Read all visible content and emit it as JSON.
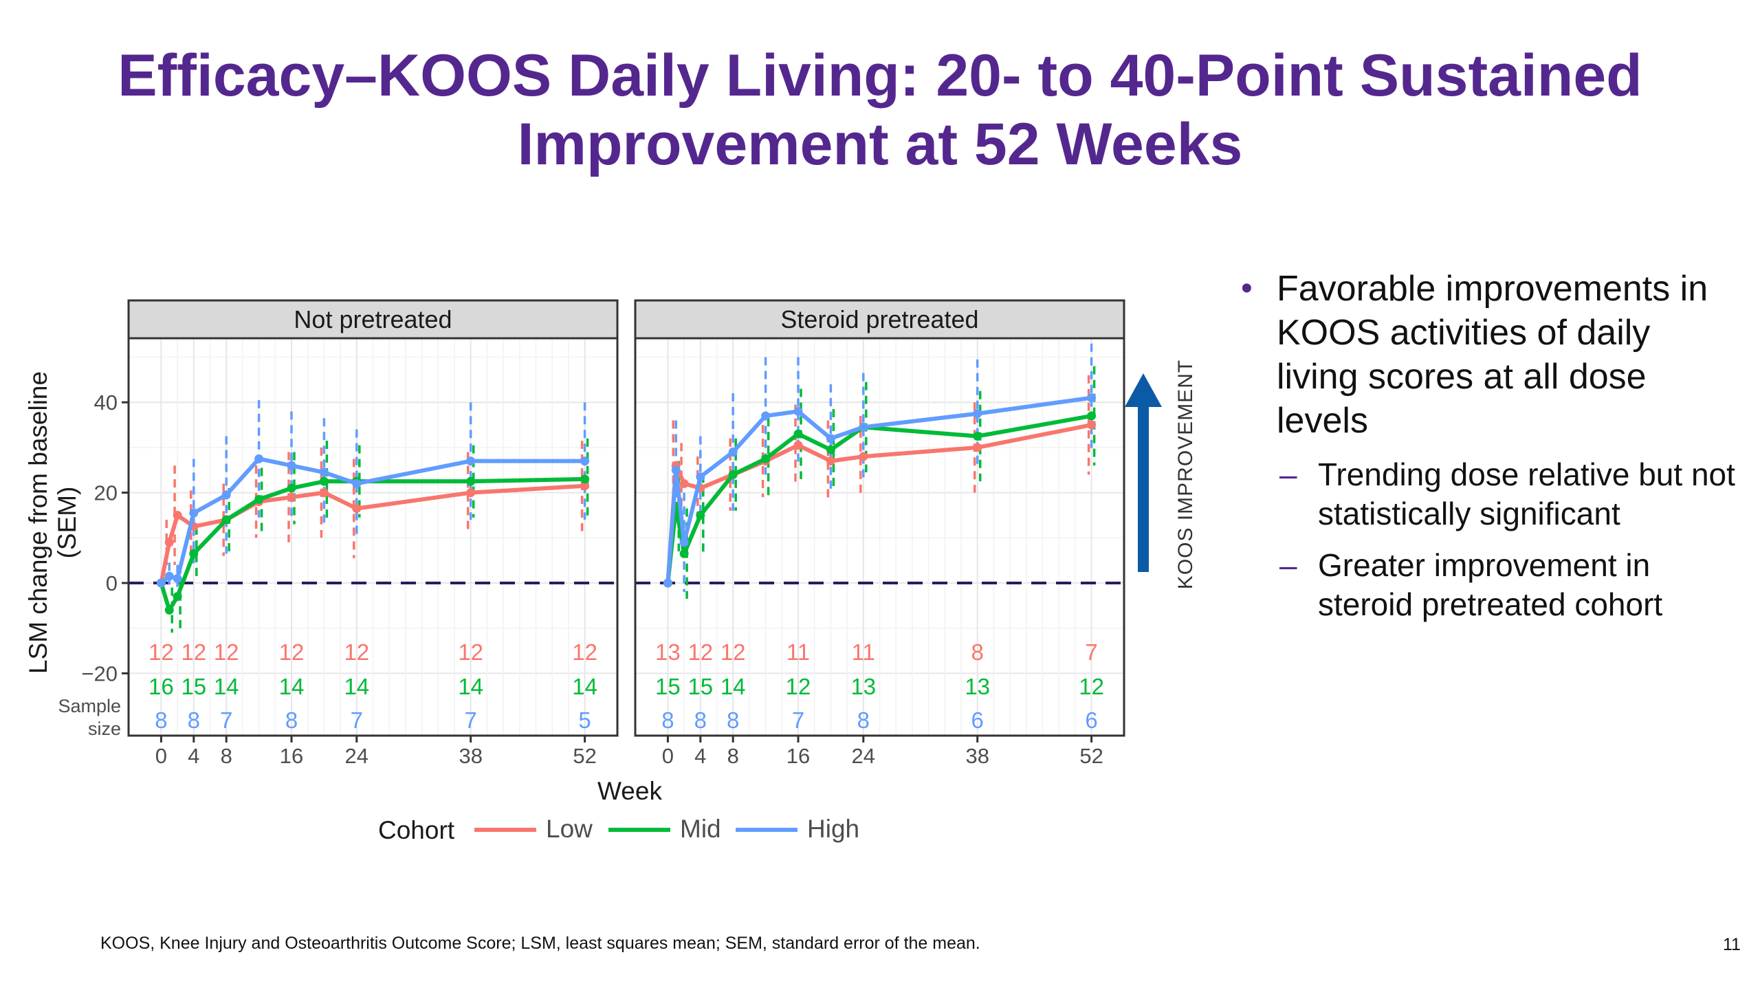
{
  "title": {
    "line1": "Efficacy–KOOS Daily Living: 20- to 40-Point Sustained",
    "line2": "Improvement at 52 Weeks"
  },
  "bullets": {
    "main": "Favorable improvements in KOOS activities of daily living scores at all dose levels",
    "sub1": "Trending dose relative but not statistically significant",
    "sub2": "Greater improvement in steroid pretreated cohort"
  },
  "footnote": "KOOS, Knee Injury and Osteoarthritis Outcome Score; LSM, least squares mean; SEM, standard error of the mean.",
  "page_number": "11",
  "arrow_label": "KOOS IMPROVEMENT",
  "colors": {
    "title": "#54278f",
    "low": "#f8766d",
    "mid": "#00ba38",
    "high": "#619cff",
    "arrow": "#0b5aa6",
    "baseline": "#2d1a5e",
    "strip": "#d9d9d9"
  },
  "chart_data": {
    "type": "line",
    "xlabel": "Week",
    "ylabel": "LSM change from baseline (SEM)",
    "ylim": [
      -25,
      53
    ],
    "xlim": [
      -4,
      56
    ],
    "xticks": [
      0,
      4,
      8,
      16,
      24,
      38,
      52
    ],
    "yticks": [
      -20,
      0,
      20,
      40
    ],
    "grid": true,
    "baseline_y": 0,
    "legend": {
      "title": "Cohort",
      "position": "bottom",
      "entries": [
        "Low",
        "Mid",
        "High"
      ]
    },
    "sample_size_label": "Sample size",
    "panels": [
      {
        "title": "Not pretreated",
        "series": [
          {
            "name": "Low",
            "x": [
              0,
              1,
              2,
              4,
              8,
              12,
              16,
              20,
              24,
              38,
              52
            ],
            "y": [
              0,
              9,
              15,
              12.5,
              14,
              18,
              19,
              20,
              16.5,
              20,
              21.5
            ],
            "err": [
              0,
              5,
              11,
              8,
              8,
              8,
              10,
              10,
              11,
              9,
              10
            ]
          },
          {
            "name": "Mid",
            "x": [
              0,
              1,
              2,
              4,
              8,
              12,
              16,
              20,
              24,
              38,
              52
            ],
            "y": [
              0,
              -6,
              -3,
              6.5,
              14,
              18.5,
              21,
              22.5,
              22.5,
              22.5,
              23
            ],
            "err": [
              0,
              5,
              7,
              6,
              7,
              7,
              8,
              9,
              8,
              8,
              9
            ]
          },
          {
            "name": "High",
            "x": [
              0,
              1,
              2,
              4,
              8,
              12,
              16,
              20,
              24,
              38,
              52
            ],
            "y": [
              0,
              1.5,
              1,
              15.5,
              19.5,
              27.5,
              26,
              24.5,
              22,
              27,
              27
            ],
            "err": [
              0,
              3,
              3,
              12,
              13,
              13,
              12,
              12,
              12,
              13,
              13
            ]
          }
        ],
        "sample_sizes": {
          "weeks": [
            0,
            4,
            8,
            16,
            24,
            38,
            52
          ],
          "Low": [
            "12",
            "12",
            "12",
            "12",
            "12",
            "12",
            "12"
          ],
          "Mid": [
            "16",
            "15",
            "14",
            "14",
            "14",
            "14",
            "14"
          ],
          "High": [
            "8",
            "8",
            "7",
            "8",
            "7",
            "7",
            "5"
          ]
        }
      },
      {
        "title": "Steroid pretreated",
        "series": [
          {
            "name": "Low",
            "x": [
              0,
              1,
              2,
              4,
              8,
              12,
              16,
              20,
              24,
              38,
              52
            ],
            "y": [
              0,
              26,
              22,
              21,
              24,
              27,
              30.5,
              27,
              28,
              30,
              35
            ],
            "err": [
              0,
              10,
              9,
              7,
              8,
              8,
              9,
              9,
              9,
              10,
              11
            ]
          },
          {
            "name": "Mid",
            "x": [
              0,
              1,
              2,
              4,
              8,
              12,
              16,
              20,
              24,
              38,
              52
            ],
            "y": [
              0,
              17,
              6.5,
              15,
              24,
              27.5,
              33,
              29.5,
              34.5,
              32.5,
              37
            ],
            "err": [
              0,
              10,
              10,
              9,
              8,
              9,
              10,
              9,
              10,
              10,
              11
            ]
          },
          {
            "name": "High",
            "x": [
              0,
              1,
              2,
              4,
              8,
              12,
              16,
              20,
              24,
              38,
              52
            ],
            "y": [
              0,
              25,
              9,
              23.5,
              29,
              37,
              38,
              32,
              34.5,
              37.5,
              41
            ],
            "err": [
              0,
              11,
              11,
              9,
              13,
              13,
              12,
              12,
              12,
              12,
              12
            ]
          }
        ],
        "sample_sizes": {
          "weeks": [
            0,
            4,
            8,
            16,
            24,
            38,
            52
          ],
          "Low": [
            "13",
            "12",
            "12",
            "11",
            "11",
            "8",
            "7"
          ],
          "Mid": [
            "15",
            "15",
            "14",
            "12",
            "13",
            "13",
            "12"
          ],
          "High": [
            "8",
            "8",
            "8",
            "7",
            "8",
            "6",
            "6"
          ]
        }
      }
    ]
  }
}
